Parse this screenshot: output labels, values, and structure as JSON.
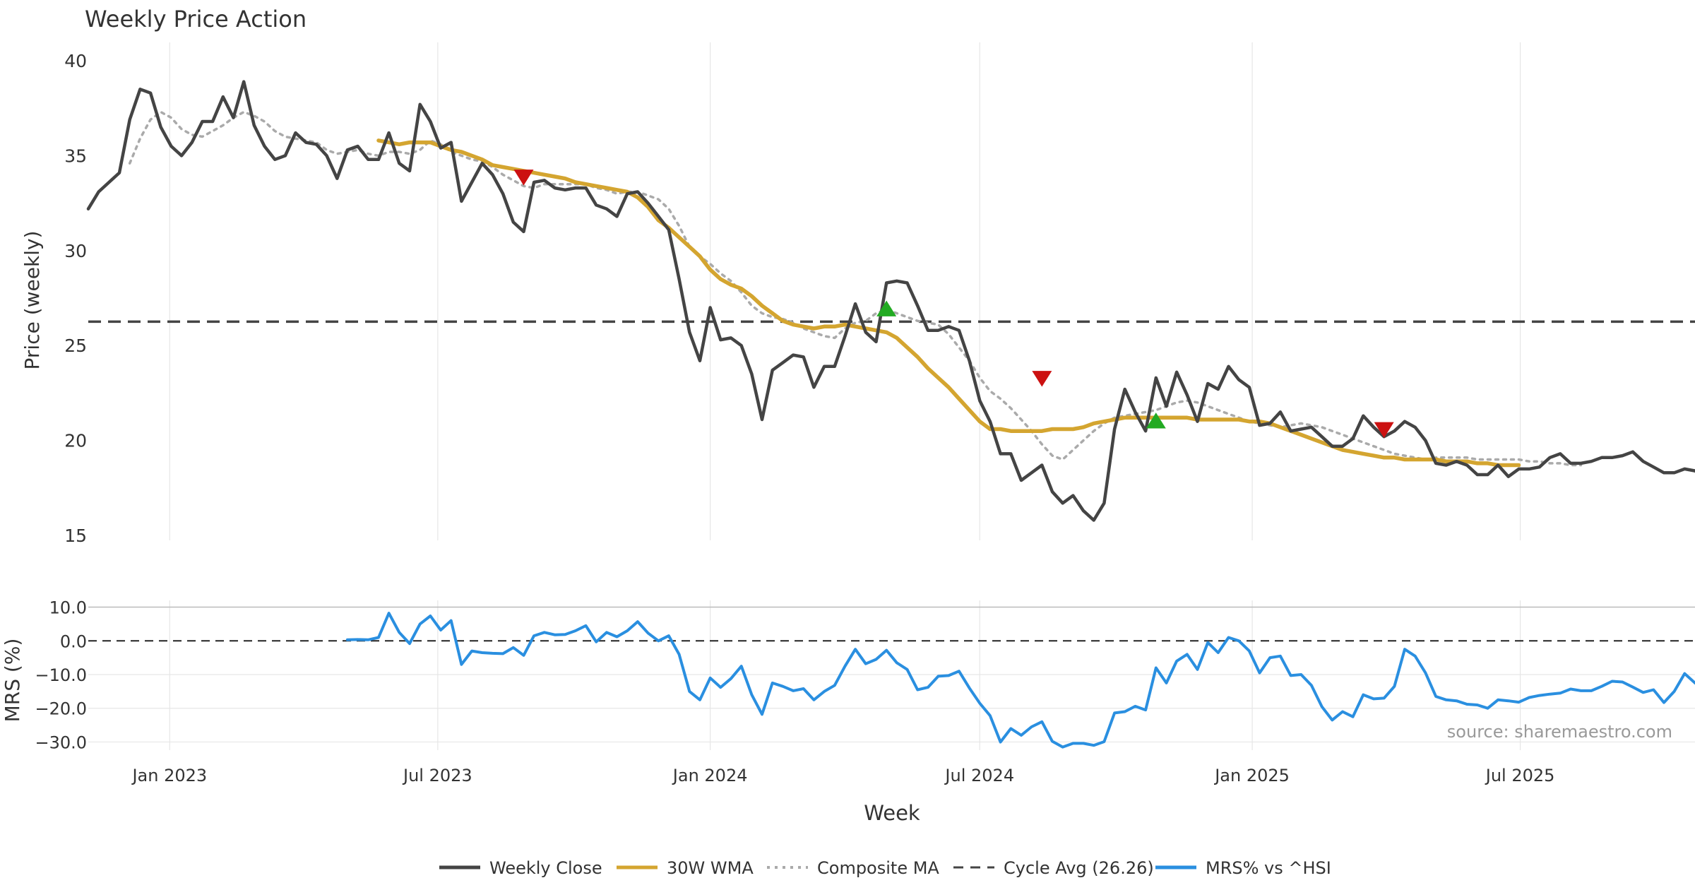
{
  "chart_data": [
    {
      "type": "line",
      "title": "Weekly Price Action",
      "ylabel": "Price (weekly)",
      "ylim": [
        15,
        40
      ],
      "yticks": [
        "15",
        "20",
        "25",
        "30",
        "35",
        "40"
      ],
      "xlim": [
        "2022-11-07",
        "2025-10-27"
      ],
      "grid": true,
      "cycle_avg": 26.26,
      "series": [
        {
          "name": "Weekly Close",
          "color": "#444444",
          "x_start": "2022-11-07",
          "x_step_weeks": 1,
          "values": [
            32.2,
            33.1,
            33.6,
            34.1,
            36.9,
            38.5,
            38.3,
            36.5,
            35.5,
            35.0,
            35.7,
            36.8,
            36.8,
            38.1,
            37.0,
            38.9,
            36.6,
            35.5,
            34.8,
            35.0,
            36.2,
            35.7,
            35.6,
            35.0,
            33.8,
            35.3,
            35.5,
            34.8,
            34.8,
            36.2,
            34.6,
            34.2,
            37.7,
            36.8,
            35.4,
            35.7,
            32.6,
            33.6,
            34.6,
            34.0,
            33.0,
            31.5,
            31.0,
            33.6,
            33.7,
            33.3,
            33.2,
            33.3,
            33.3,
            32.4,
            32.2,
            31.8,
            33.0,
            33.1,
            32.5,
            31.8,
            31.1,
            28.5,
            25.7,
            24.2,
            27.0,
            25.3,
            25.4,
            25.0,
            23.5,
            21.1,
            23.7,
            24.1,
            24.5,
            24.4,
            22.8,
            23.9,
            23.9,
            25.5,
            27.2,
            25.7,
            25.2,
            28.3,
            28.4,
            28.3,
            27.1,
            25.8,
            25.8,
            26.0,
            25.8,
            24.2,
            22.1,
            21.0,
            19.3,
            19.3,
            17.9,
            18.3,
            18.7,
            17.3,
            16.7,
            17.1,
            16.3,
            15.8,
            16.7,
            20.6,
            22.7,
            21.5,
            20.5,
            23.3,
            21.8,
            23.6,
            22.4,
            21.0,
            23.0,
            22.7,
            23.9,
            23.2,
            22.8,
            20.8,
            20.9,
            21.5,
            20.5,
            20.6,
            20.7,
            20.2,
            19.7,
            19.7,
            20.1,
            21.3,
            20.7,
            20.2,
            20.5,
            21.0,
            20.7,
            20.0,
            18.8,
            18.7,
            18.9,
            18.7,
            18.2,
            18.2,
            18.7,
            18.1,
            18.5,
            18.5,
            18.6,
            19.1,
            19.3,
            18.8,
            18.8,
            18.9,
            19.1,
            19.1,
            19.2,
            19.4,
            18.9,
            18.6,
            18.3,
            18.3,
            18.5,
            18.4,
            18.0
          ]
        },
        {
          "name": "30W WMA",
          "color": "#D4A530",
          "x_start": "2023-05-22",
          "x_step_weeks": 1,
          "values": [
            35.8,
            35.7,
            35.6,
            35.7,
            35.7,
            35.7,
            35.5,
            35.3,
            35.2,
            35.0,
            34.8,
            34.5,
            34.4,
            34.3,
            34.2,
            34.1,
            34.0,
            33.9,
            33.8,
            33.6,
            33.5,
            33.4,
            33.3,
            33.2,
            33.1,
            32.8,
            32.3,
            31.6,
            31.2,
            30.7,
            30.2,
            29.7,
            29.0,
            28.5,
            28.2,
            28.0,
            27.6,
            27.1,
            26.7,
            26.3,
            26.1,
            26.0,
            25.9,
            26.0,
            26.0,
            26.1,
            26.0,
            25.9,
            25.8,
            25.7,
            25.4,
            24.9,
            24.4,
            23.8,
            23.3,
            22.8,
            22.2,
            21.6,
            21.0,
            20.6,
            20.6,
            20.5,
            20.5,
            20.5,
            20.5,
            20.6,
            20.6,
            20.6,
            20.7,
            20.9,
            21.0,
            21.1,
            21.2,
            21.2,
            21.2,
            21.2,
            21.2,
            21.2,
            21.2,
            21.1,
            21.1,
            21.1,
            21.1,
            21.1,
            21.0,
            21.0,
            20.9,
            20.7,
            20.5,
            20.3,
            20.1,
            19.9,
            19.7,
            19.5,
            19.4,
            19.3,
            19.2,
            19.1,
            19.1,
            19.0,
            19.0,
            19.0,
            19.0,
            18.9,
            18.9,
            18.9,
            18.8,
            18.8,
            18.7,
            18.7,
            18.7
          ]
        },
        {
          "name": "Composite MA",
          "color": "#AAAAAA",
          "x_start": "2022-12-05",
          "x_step_weeks": 1,
          "values": [
            34.6,
            35.9,
            36.9,
            37.3,
            37.0,
            36.4,
            36.1,
            36.0,
            36.3,
            36.6,
            37.0,
            37.3,
            37.1,
            36.8,
            36.3,
            36.0,
            35.9,
            35.8,
            35.7,
            35.3,
            35.1,
            35.2,
            35.3,
            35.1,
            35.0,
            35.2,
            35.2,
            35.1,
            35.3,
            35.8,
            35.6,
            35.2,
            35.0,
            34.8,
            34.7,
            34.4,
            34.0,
            33.7,
            33.4,
            33.3,
            33.5,
            33.5,
            33.5,
            33.5,
            33.5,
            33.3,
            33.2,
            33.0,
            33.1,
            33.1,
            32.9,
            32.7,
            32.2,
            31.3,
            30.2,
            29.7,
            29.3,
            28.8,
            28.4,
            27.8,
            27.1,
            26.7,
            26.5,
            26.4,
            26.2,
            25.9,
            25.7,
            25.5,
            25.4,
            25.9,
            26.2,
            26.3,
            26.7,
            26.9,
            26.7,
            26.5,
            26.3,
            26.2,
            26.1,
            25.6,
            24.9,
            24.2,
            23.3,
            22.6,
            22.2,
            21.7,
            21.1,
            20.5,
            19.8,
            19.2,
            19.0,
            19.5,
            20.0,
            20.5,
            20.9,
            21.2,
            21.3,
            21.4,
            21.5,
            21.6,
            21.8,
            22.0,
            22.1,
            22.0,
            21.8,
            21.6,
            21.4,
            21.2,
            21.0,
            20.9,
            20.8,
            20.7,
            20.8,
            20.9,
            20.8,
            20.7,
            20.5,
            20.3,
            20.1,
            19.9,
            19.7,
            19.5,
            19.3,
            19.2,
            19.1,
            19.0,
            19.1,
            19.1,
            19.1,
            19.1,
            19.0,
            19.0,
            19.0,
            19.0,
            19.0,
            18.9,
            18.9,
            18.8,
            18.8,
            18.7,
            18.7
          ]
        }
      ],
      "markers": [
        {
          "type": "sell",
          "date": "2023-08-28",
          "y": 33.9,
          "color": "#CC1111"
        },
        {
          "type": "buy",
          "date": "2024-04-29",
          "y": 26.9,
          "color": "#22AA22"
        },
        {
          "type": "sell",
          "date": "2024-08-12",
          "y": 23.3,
          "color": "#CC1111"
        },
        {
          "type": "buy",
          "date": "2024-10-28",
          "y": 21.0,
          "color": "#22AA22"
        },
        {
          "type": "sell",
          "date": "2025-03-31",
          "y": 20.6,
          "color": "#CC1111"
        }
      ]
    },
    {
      "type": "line",
      "ylabel": "MRS (%)",
      "ylim": [
        -32,
        12
      ],
      "yticks": [
        "10.0",
        "0.0",
        "−10.0",
        "−20.0",
        "−30.0"
      ],
      "xlabel": "Week",
      "xticks": [
        {
          "date": "2023-01-01",
          "label": "Jan 2023"
        },
        {
          "date": "2023-07-01",
          "label": "Jul 2023"
        },
        {
          "date": "2024-01-01",
          "label": "Jan 2024"
        },
        {
          "date": "2024-07-01",
          "label": "Jul 2024"
        },
        {
          "date": "2025-01-01",
          "label": "Jan 2025"
        },
        {
          "date": "2025-07-01",
          "label": "Jul 2025"
        }
      ],
      "series": [
        {
          "name": "MRS% vs ^HSI",
          "color": "#2A8FE0",
          "x_start": "2023-05-01",
          "x_step_weeks": 1,
          "values": [
            0.3,
            0.4,
            0.3,
            1.0,
            8.2,
            2.5,
            -0.8,
            5.0,
            7.4,
            3.2,
            6.0,
            -7.0,
            -3.0,
            -3.5,
            -3.7,
            -3.8,
            -2.0,
            -4.3,
            1.5,
            2.5,
            1.8,
            1.9,
            3.0,
            4.5,
            -0.3,
            2.5,
            1.2,
            3.0,
            5.7,
            2.3,
            0.0,
            1.5,
            -4.0,
            -15.0,
            -17.5,
            -11.0,
            -13.8,
            -11.2,
            -7.5,
            -16.0,
            -21.8,
            -12.5,
            -13.5,
            -14.8,
            -14.2,
            -17.5,
            -15.0,
            -13.2,
            -7.5,
            -2.5,
            -6.8,
            -5.5,
            -2.8,
            -6.5,
            -8.5,
            -14.5,
            -13.8,
            -10.5,
            -10.3,
            -9.0,
            -14.0,
            -18.5,
            -22.2,
            -30.0,
            -26.0,
            -28.0,
            -25.5,
            -24.0,
            -29.8,
            -31.5,
            -30.4,
            -30.4,
            -31.0,
            -29.9,
            -21.4,
            -21.0,
            -19.4,
            -20.5,
            -8.0,
            -12.5,
            -6.0,
            -4.0,
            -8.5,
            -0.5,
            -3.5,
            1.0,
            0.0,
            -3.0,
            -9.5,
            -5.0,
            -4.5,
            -10.3,
            -10.0,
            -13.2,
            -19.5,
            -23.5,
            -21.0,
            -22.5,
            -16.0,
            -17.2,
            -17.0,
            -13.5,
            -2.5,
            -4.5,
            -9.5,
            -16.5,
            -17.5,
            -17.8,
            -18.8,
            -19.0,
            -20.0,
            -17.5,
            -17.8,
            -18.2,
            -16.8,
            -16.2,
            -15.8,
            -15.5,
            -14.3,
            -14.8,
            -14.8,
            -13.5,
            -12.0,
            -12.2,
            -13.7,
            -15.3,
            -14.5,
            -18.3,
            -15.0,
            -9.7,
            -12.5,
            -14.8
          ]
        }
      ]
    }
  ],
  "legend": [
    {
      "label": "Weekly Close",
      "style": "solid",
      "color": "#444444"
    },
    {
      "label": "30W WMA",
      "style": "solid",
      "color": "#D4A530"
    },
    {
      "label": "Composite MA",
      "style": "dotted",
      "color": "#AAAAAA"
    },
    {
      "label": "Cycle Avg (26.26)",
      "style": "dashed",
      "color": "#444444"
    },
    {
      "label": "MRS% vs ^HSI",
      "style": "solid",
      "color": "#2A8FE0"
    }
  ],
  "source_label": "source: sharemaestro.com"
}
